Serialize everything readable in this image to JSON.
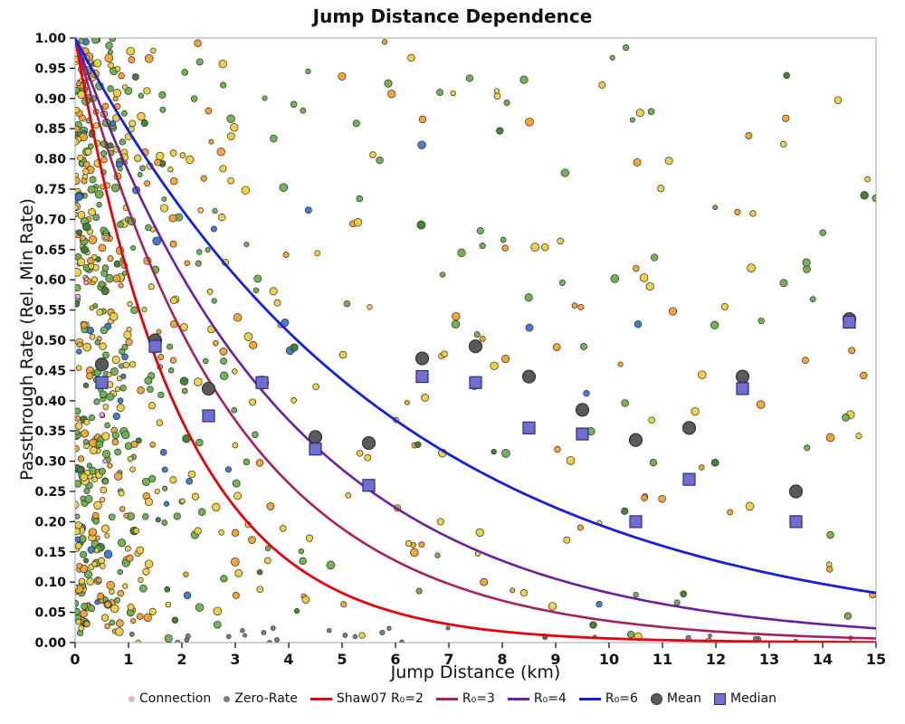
{
  "chart_data": {
    "type": "scatter",
    "title": "Jump Distance Dependence",
    "xlabel": "Jump Distance (km)",
    "ylabel": "Passthrough Rate (Rel. Min Rate)",
    "xlim": [
      0,
      15
    ],
    "ylim": [
      0.0,
      1.0
    ],
    "grid": false,
    "x_ticks": [
      "0",
      "1",
      "2",
      "3",
      "4",
      "5",
      "6",
      "7",
      "8",
      "9",
      "10",
      "11",
      "12",
      "13",
      "14",
      "15"
    ],
    "y_ticks": [
      "0.00",
      "0.05",
      "0.10",
      "0.15",
      "0.20",
      "0.25",
      "0.30",
      "0.35",
      "0.40",
      "0.45",
      "0.50",
      "0.55",
      "0.60",
      "0.65",
      "0.70",
      "0.75",
      "0.80",
      "0.85",
      "0.90",
      "0.95",
      "1.00"
    ],
    "curves": [
      {
        "label": "Shaw07 R₀=2",
        "formula": "y = exp(-x / R0)",
        "R0": 2,
        "color": "#e8000b",
        "width": 2.8
      },
      {
        "label": "R₀=3",
        "formula": "y = exp(-x / R0)",
        "R0": 3,
        "color": "#a81f5e",
        "width": 2.6
      },
      {
        "label": "R₀=4",
        "formula": "y = exp(-x / R0)",
        "R0": 4,
        "color": "#6a1fa2",
        "width": 2.6
      },
      {
        "label": "R₀=6",
        "formula": "y = exp(-x / R0)",
        "R0": 6,
        "color": "#1420dc",
        "width": 2.8
      }
    ],
    "binned_series": {
      "bin_centers_km": [
        0.5,
        1.5,
        2.5,
        3.5,
        4.5,
        5.5,
        6.5,
        7.5,
        8.5,
        9.5,
        10.5,
        11.5,
        12.5,
        13.5,
        14.5
      ],
      "mean": [
        0.46,
        0.5,
        0.42,
        0.43,
        0.34,
        0.33,
        0.47,
        0.49,
        0.44,
        0.385,
        0.335,
        0.355,
        0.44,
        0.25,
        0.535
      ],
      "median": [
        0.43,
        0.49,
        0.375,
        0.43,
        0.32,
        0.26,
        0.44,
        0.43,
        0.355,
        0.345,
        0.2,
        0.27,
        0.42,
        0.2,
        0.53
      ],
      "mean_style": {
        "marker": "circle",
        "fill": "#5a5a5a",
        "edge": "#333333",
        "radius": 7
      },
      "median_style": {
        "marker": "square",
        "fill": "#7070cc",
        "edge": "#2a2a8a",
        "size": 13
      }
    },
    "scatter_spec": {
      "comment": "individual connection points; x concentrated near 0, y roughly uniform",
      "seed": 42,
      "groups": [
        {
          "name": "dense-left",
          "n": 430,
          "x_dist": "exp",
          "x_scale": 0.8,
          "palette": "main"
        },
        {
          "name": "spread",
          "n": 345,
          "x_dist": "pow",
          "x_pow": 1.7,
          "palette": "main"
        },
        {
          "name": "zero-rate",
          "n": 26,
          "x_dist": "pow",
          "x_pow": 1.3,
          "palette": "gray",
          "y_max": 0.025
        },
        {
          "name": "connection",
          "n": 8,
          "x_dist": "exp",
          "x_scale": 0.5,
          "palette": "pink"
        }
      ],
      "palettes": {
        "main": [
          {
            "fill": "#eccf3e",
            "w": 0.36
          },
          {
            "fill": "#6ab04c",
            "w": 0.33
          },
          {
            "fill": "#f5a12b",
            "w": 0.21
          },
          {
            "fill": "#3a7d2c",
            "w": 0.06
          },
          {
            "fill": "#3b78c9",
            "w": 0.04
          }
        ],
        "gray": [
          {
            "fill": "#7a7a7a",
            "w": 1.0
          }
        ],
        "pink": [
          {
            "fill": "#f9a8d4",
            "w": 1.0
          }
        ]
      },
      "point_edge": "#2e2e2e"
    },
    "legend": [
      {
        "label": "Connection",
        "marker": "dot",
        "color": "#f9a8d4"
      },
      {
        "label": "Zero-Rate",
        "marker": "dot",
        "color": "#7a7a7a"
      },
      {
        "label": "Shaw07 R₀=2",
        "marker": "line",
        "color": "#e8000b"
      },
      {
        "label": "R₀=3",
        "marker": "line",
        "color": "#a81f5e"
      },
      {
        "label": "R₀=4",
        "marker": "line",
        "color": "#6a1fa2"
      },
      {
        "label": "R₀=6",
        "marker": "line",
        "color": "#1420dc"
      },
      {
        "label": "Mean",
        "marker": "circle",
        "color": "#5a5a5a"
      },
      {
        "label": "Median",
        "marker": "square",
        "color": "#7070cc"
      }
    ],
    "frame_color": "#a9b4be"
  }
}
